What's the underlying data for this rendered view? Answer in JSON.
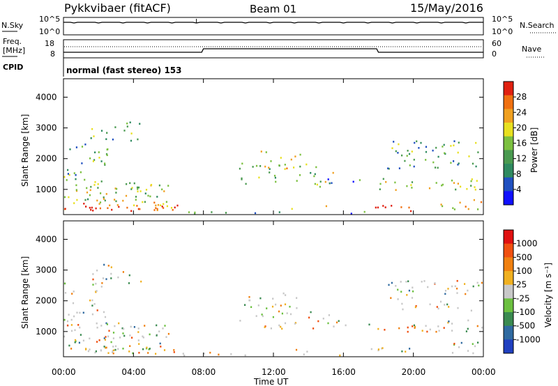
{
  "header": {
    "station": "Pykkvibaer (fitACF)",
    "beam": "Beam 01",
    "date": "15/May/2016"
  },
  "noise_panel": {
    "left_label": "N.Sky",
    "left_ticks": [
      "10^5",
      "10^0"
    ],
    "right_label": "N.Search",
    "right_ticks": [
      "10^5",
      "10^0"
    ]
  },
  "freq_panel": {
    "left_label_line1": "Freq.",
    "left_label_line2": "[MHz]",
    "left_ticks": [
      "18",
      "8"
    ],
    "right_label": "Nave",
    "right_ticks": [
      "60",
      "0"
    ]
  },
  "cpid": {
    "label": "CPID",
    "mode": "normal (fast stereo) 153"
  },
  "chart_data": [
    {
      "type": "heatmap",
      "name": "power",
      "ylabel": "Slant Range [km]",
      "yticks": [
        "1000",
        "2000",
        "3000",
        "4000"
      ],
      "ylim": [
        180,
        4600
      ],
      "xlim_hours": [
        0,
        24
      ],
      "colorbar_label": "Power [dB]",
      "colorbar_ticks": [
        "4",
        "8",
        "12",
        "16",
        "20",
        "24",
        "28"
      ],
      "colors": [
        "#1010ff",
        "#2050c0",
        "#2f8a60",
        "#4a9a50",
        "#7cc040",
        "#e8e020",
        "#f0a020",
        "#f07010",
        "#e02010"
      ]
    },
    {
      "type": "heatmap",
      "name": "velocity",
      "ylabel": "Slant Range [km]",
      "yticks": [
        "1000",
        "2000",
        "3000",
        "4000"
      ],
      "ylim": [
        180,
        4600
      ],
      "xlim_hours": [
        0,
        24
      ],
      "colorbar_label": "Velocity [m s⁻¹]",
      "colorbar_ticks": [
        "1000",
        "500",
        "100",
        "25",
        "-25",
        "-100",
        "-500",
        "-1000"
      ],
      "colors": [
        "#2040c0",
        "#2f6aa0",
        "#3a8a50",
        "#6cc040",
        "#c8c8c8",
        "#f0b020",
        "#f08010",
        "#f05010",
        "#e01010"
      ]
    }
  ],
  "x_axis": {
    "tick_labels": [
      "00:00",
      "04:00",
      "08:00",
      "12:00",
      "16:00",
      "20:00",
      "00:00"
    ],
    "label": "Time UT"
  }
}
